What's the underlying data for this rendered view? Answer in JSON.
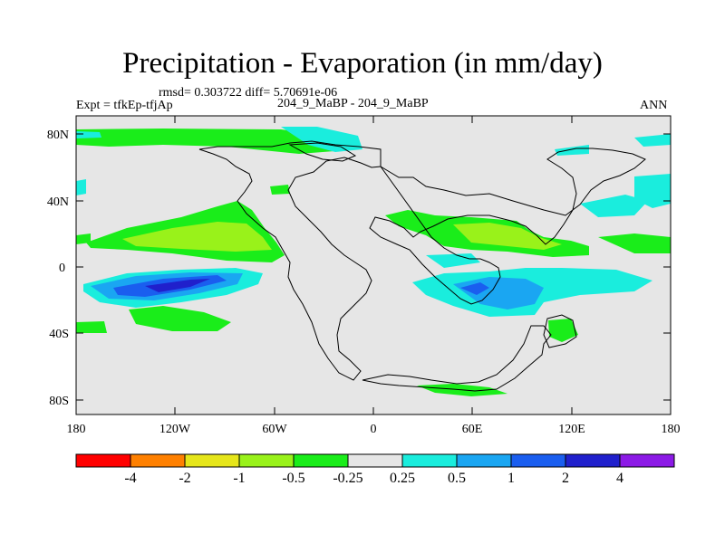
{
  "title": "Precipitation - Evaporation (in mm/day)",
  "stats": "rmsd= 0.303722 diff= 5.70691e-06",
  "experiment": "Expt = tfkEp-tfjAp",
  "case": "204_9_MaBP - 204_9_MaBP",
  "season": "ANN",
  "lat_ticks": [
    "80N",
    "40N",
    "0",
    "40S",
    "80S"
  ],
  "lon_ticks": [
    "180",
    "120W",
    "60W",
    "0",
    "60E",
    "120E",
    "180"
  ],
  "colorbar": {
    "colors": [
      "#ff0000",
      "#ff8000",
      "#e6e61a",
      "#99f21a",
      "#1aed1a",
      "#e6e6e6",
      "#1aeddd",
      "#1aa6f2",
      "#1a5eef",
      "#2020cc",
      "#8c1ae6"
    ],
    "labels": [
      "-4",
      "-2",
      "-1",
      "-0.5",
      "-0.25",
      "0.25",
      "0.5",
      "1",
      "2",
      "4"
    ]
  }
}
